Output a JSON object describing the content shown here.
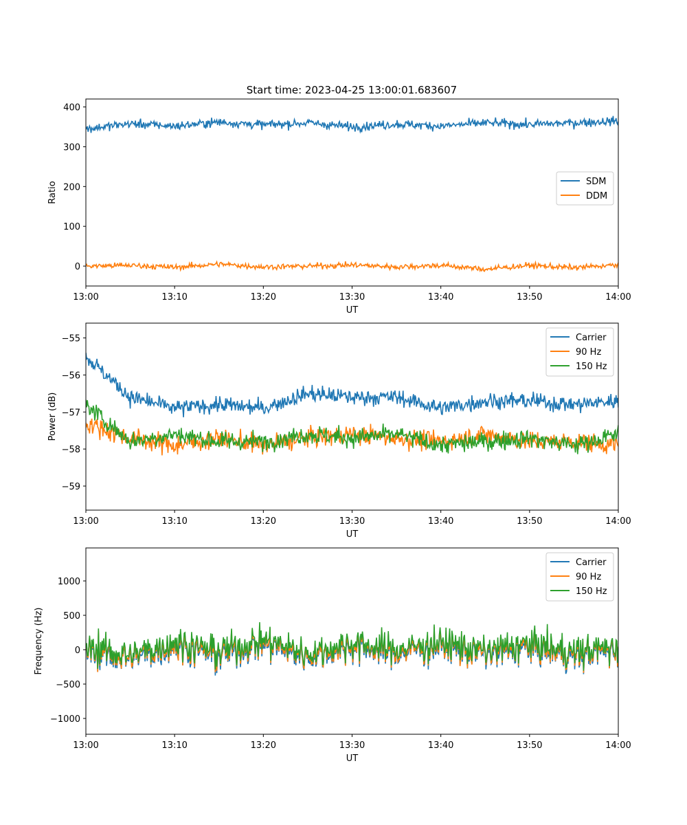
{
  "figure": {
    "title": "Start time: 2023-04-25 13:00:01.683607"
  },
  "chart_data": [
    {
      "type": "line",
      "xlabel": "UT",
      "ylabel": "Ratio",
      "xlim": [
        "13:00",
        "14:00"
      ],
      "ylim": [
        -50,
        420
      ],
      "x_ticks": [
        "13:00",
        "13:10",
        "13:20",
        "13:30",
        "13:40",
        "13:50",
        "14:00"
      ],
      "y_ticks": [
        400,
        300,
        200,
        100,
        0
      ],
      "legend_location": "center-right",
      "grid": false,
      "x": [
        "13:00",
        "13:05",
        "13:10",
        "13:15",
        "13:20",
        "13:25",
        "13:30",
        "13:35",
        "13:40",
        "13:45",
        "13:50",
        "13:55",
        "14:00"
      ],
      "series": [
        {
          "name": "SDM",
          "color": "#1f77b4",
          "values": [
            345,
            358,
            352,
            362,
            355,
            360,
            350,
            357,
            352,
            360,
            356,
            360,
            365
          ]
        },
        {
          "name": "DDM",
          "color": "#ff7f0e",
          "values": [
            0,
            2,
            -3,
            5,
            -2,
            0,
            3,
            -2,
            2,
            -8,
            2,
            -4,
            3
          ]
        }
      ]
    },
    {
      "type": "line",
      "xlabel": "UT",
      "ylabel": "Power (dB)",
      "xlim": [
        "13:00",
        "14:00"
      ],
      "ylim": [
        -59.65,
        -54.6
      ],
      "x_ticks": [
        "13:00",
        "13:10",
        "13:20",
        "13:30",
        "13:40",
        "13:50",
        "14:00"
      ],
      "y_ticks": [
        -55,
        -56,
        -57,
        -58,
        -59
      ],
      "legend_location": "top-right",
      "grid": false,
      "x": [
        "13:00",
        "13:05",
        "13:10",
        "13:15",
        "13:20",
        "13:25",
        "13:30",
        "13:35",
        "13:40",
        "13:45",
        "13:50",
        "13:55",
        "14:00"
      ],
      "series": [
        {
          "name": "Carrier",
          "color": "#1f77b4",
          "values": [
            -55.5,
            -56.6,
            -56.9,
            -56.8,
            -56.9,
            -56.5,
            -56.6,
            -56.6,
            -56.9,
            -56.7,
            -56.7,
            -56.8,
            -56.7
          ]
        },
        {
          "name": "90 Hz",
          "color": "#ff7f0e",
          "values": [
            -57.3,
            -57.7,
            -57.9,
            -57.7,
            -57.9,
            -57.7,
            -57.6,
            -57.7,
            -57.8,
            -57.6,
            -57.8,
            -57.8,
            -57.9
          ]
        },
        {
          "name": "150 Hz",
          "color": "#2ca02c",
          "values": [
            -56.8,
            -57.8,
            -57.6,
            -57.8,
            -57.8,
            -57.6,
            -57.7,
            -57.6,
            -57.9,
            -57.8,
            -57.7,
            -57.9,
            -57.6
          ]
        }
      ]
    },
    {
      "type": "line",
      "xlabel": "UT",
      "ylabel": "Frequency (Hz)",
      "xlim": [
        "13:00",
        "14:00"
      ],
      "ylim": [
        -1230,
        1480
      ],
      "x_ticks": [
        "13:00",
        "13:10",
        "13:20",
        "13:30",
        "13:40",
        "13:50",
        "14:00"
      ],
      "y_ticks": [
        1000,
        500,
        0,
        -500,
        -1000
      ],
      "legend_location": "top-right",
      "grid": false,
      "x": [
        "13:00",
        "13:05",
        "13:10",
        "13:15",
        "13:20",
        "13:25",
        "13:30",
        "13:35",
        "13:40",
        "13:45",
        "13:50",
        "13:55",
        "14:00"
      ],
      "series": [
        {
          "name": "Carrier",
          "color": "#1f77b4",
          "values": [
            0,
            -150,
            50,
            -100,
            80,
            -120,
            30,
            -60,
            40,
            -80,
            20,
            -100,
            0
          ]
        },
        {
          "name": "90 Hz",
          "color": "#ff7f0e",
          "values": [
            20,
            -120,
            80,
            -60,
            110,
            -90,
            60,
            -30,
            70,
            -50,
            50,
            -70,
            30
          ]
        },
        {
          "name": "150 Hz",
          "color": "#2ca02c",
          "values": [
            50,
            -80,
            120,
            -20,
            150,
            -50,
            100,
            10,
            110,
            -10,
            90,
            -30,
            60
          ]
        }
      ]
    }
  ]
}
